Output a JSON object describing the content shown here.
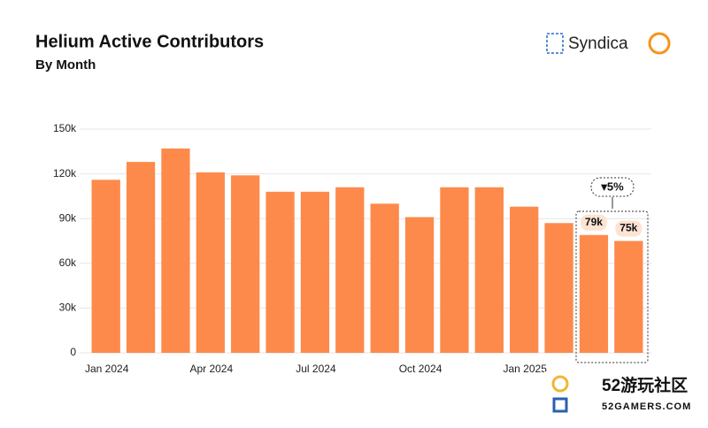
{
  "chart_data": {
    "type": "bar",
    "title": "Helium Active Contributors",
    "subtitle": "By Month",
    "categories": [
      "Jan 2024",
      null,
      null,
      "Apr 2024",
      null,
      null,
      "Jul 2024",
      null,
      null,
      "Oct 2024",
      null,
      null,
      "Jan 2025",
      null,
      null,
      null
    ],
    "values": [
      116000,
      128000,
      137000,
      121000,
      119000,
      108000,
      108000,
      111000,
      100000,
      91000,
      111000,
      111000,
      98000,
      87000,
      79000,
      75000
    ],
    "value_labels": [
      null,
      null,
      null,
      null,
      null,
      null,
      null,
      null,
      null,
      null,
      null,
      null,
      null,
      null,
      "79k",
      "75k"
    ],
    "color": "#fd8a4b",
    "ylim": [
      0,
      150000
    ],
    "yticks": [
      0,
      {
        "value": 30000,
        "label": "30k"
      },
      {
        "value": 60000,
        "label": "60k"
      },
      {
        "value": 90000,
        "label": "90k"
      },
      {
        "value": 120000,
        "label": "120k"
      },
      {
        "value": 150000,
        "label": "150k"
      }
    ],
    "grid": true,
    "annotation": "▾5%"
  },
  "brand": "Syndica",
  "watermark": {
    "title": "52游玩社区",
    "url": "52GAMERS.COM"
  }
}
